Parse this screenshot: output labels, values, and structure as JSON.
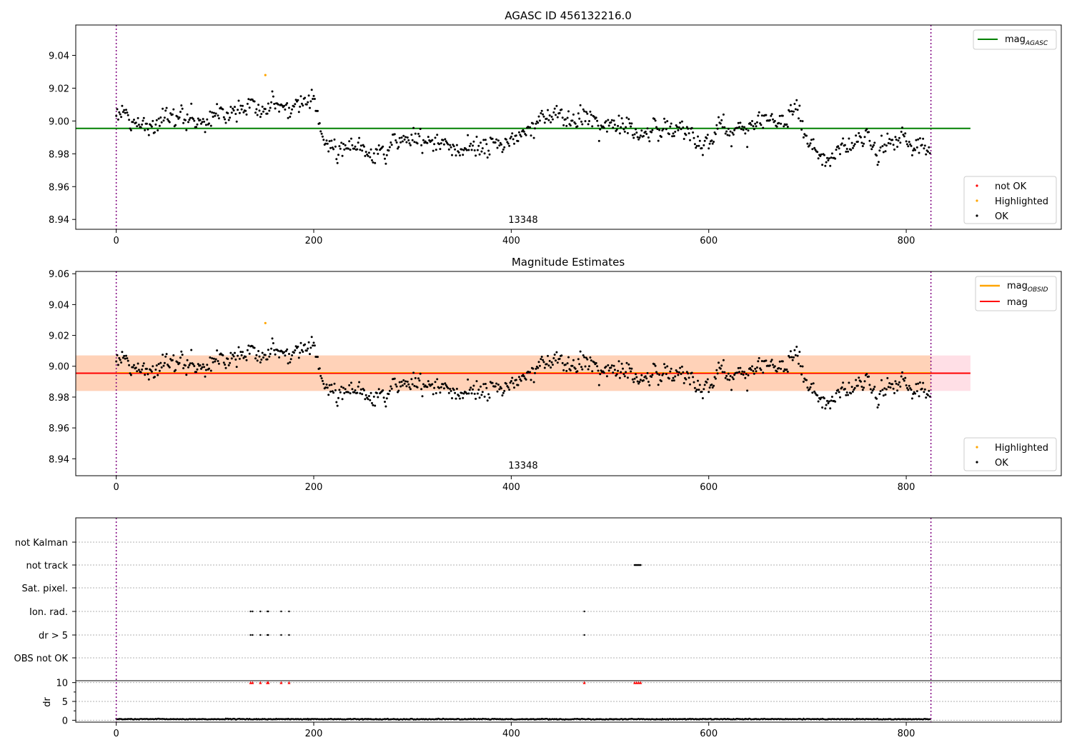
{
  "chart_data": [
    {
      "type": "scatter",
      "title": "AGASC ID 456132216.0",
      "xlim": [
        -41,
        957
      ],
      "ylim": [
        8.934,
        9.0585
      ],
      "xticks": [
        0,
        200,
        400,
        600,
        800
      ],
      "yticks": [
        8.94,
        8.96,
        8.98,
        9.0,
        9.02,
        9.04
      ],
      "vlines": [
        0,
        825
      ],
      "annotation": {
        "text": "13348",
        "x": 412,
        "y": 8.94
      },
      "hline": {
        "name": "mag",
        "subscript": "AGASC",
        "y": 8.9955,
        "x_end": 865,
        "color": "#008000"
      },
      "legend_top": "upper right",
      "legend_bottom": "lower right",
      "legend_bottom_entries": [
        {
          "label": "not OK",
          "color": "#ff0000"
        },
        {
          "label": "Highlighted",
          "color": "#ffa500"
        },
        {
          "label": "OK",
          "color": "#000000"
        }
      ],
      "series": [
        {
          "name": "OK",
          "color": "#000000",
          "n_points": 825,
          "x_range": [
            0,
            824
          ],
          "y_range": [
            8.964,
            9.024
          ],
          "trend_x": [
            0,
            40,
            80,
            120,
            160,
            200,
            210,
            260,
            300,
            350,
            400,
            430,
            480,
            520,
            560,
            600,
            640,
            690,
            700,
            740,
            760,
            800,
            824
          ],
          "trend_y": [
            9.004,
            8.997,
            9.006,
            9.008,
            9.01,
            9.012,
            8.99,
            8.98,
            8.99,
            8.982,
            8.988,
            9.003,
            9.0,
            8.995,
            8.998,
            8.99,
            8.998,
            9.002,
            8.982,
            8.982,
            8.99,
            8.985,
            8.987
          ]
        },
        {
          "name": "Highlighted",
          "color": "#ffa500",
          "points": [
            [
              151,
              9.028
            ]
          ]
        }
      ]
    },
    {
      "type": "scatter",
      "title": "Magnitude Estimates",
      "xlim": [
        -41,
        957
      ],
      "ylim": [
        8.929,
        9.0615
      ],
      "xticks": [
        0,
        200,
        400,
        600,
        800
      ],
      "yticks": [
        8.94,
        8.96,
        8.98,
        9.0,
        9.02,
        9.04,
        9.06
      ],
      "vlines": [
        0,
        825
      ],
      "annotation": {
        "text": "13348",
        "x": 412,
        "y": 8.936
      },
      "band_pink": {
        "y": [
          8.984,
          9.007
        ],
        "x_end": 865,
        "color": "#ffdfe6"
      },
      "band_orange": {
        "y": [
          8.984,
          9.007
        ],
        "x_end": 825,
        "color": "#ffd2b8"
      },
      "legend_top_entries": [
        {
          "name": "mag",
          "subscript": "OBSID",
          "color": "#ffa500"
        },
        {
          "name": "mag",
          "subscript": "",
          "color": "#ff0000"
        }
      ],
      "hline": {
        "name": "mag",
        "y": 8.9955,
        "x_end": 865,
        "color": "#ff0000"
      },
      "legend_bottom_entries": [
        {
          "label": "Highlighted",
          "color": "#ffa500"
        },
        {
          "label": "OK",
          "color": "#000000"
        }
      ],
      "series": [
        {
          "name": "OK",
          "color": "#000000",
          "same_as_panel": 0
        },
        {
          "name": "Highlighted",
          "color": "#ffa500",
          "points": [
            [
              151,
              9.028
            ]
          ]
        }
      ]
    },
    {
      "type": "scatter",
      "xlim": [
        -41,
        957
      ],
      "xticks": [
        0,
        200,
        400,
        600,
        800
      ],
      "vlines": [
        0,
        825
      ],
      "flag_rows": [
        "not Kalman",
        "not track",
        "Sat. pixel.",
        "Ion. rad.",
        "dr > 5",
        "OBS not OK"
      ],
      "flag_points": {
        "not track": [
          [
            525,
            531
          ]
        ],
        "Ion. rad.": [
          136,
          138,
          146,
          153,
          154,
          167,
          175,
          474
        ],
        "dr > 5": [
          136,
          138,
          146,
          153,
          154,
          167,
          175,
          474
        ]
      },
      "dr_ylabel": "dr",
      "dr_ylim": [
        -0.5,
        10.5
      ],
      "dr_yticks": [
        0,
        5,
        10
      ],
      "dr_series": {
        "name": "dr",
        "color": "#000000",
        "x_range": [
          0,
          824
        ],
        "typical": 0.3
      },
      "dr_outliers": {
        "color": "#ff0000",
        "y": 10,
        "x": [
          136,
          138,
          146,
          153,
          154,
          167,
          175,
          474,
          525,
          527,
          529,
          531
        ]
      }
    }
  ],
  "colors": {
    "vline": "#800080",
    "grid": "#b0b0b0"
  }
}
